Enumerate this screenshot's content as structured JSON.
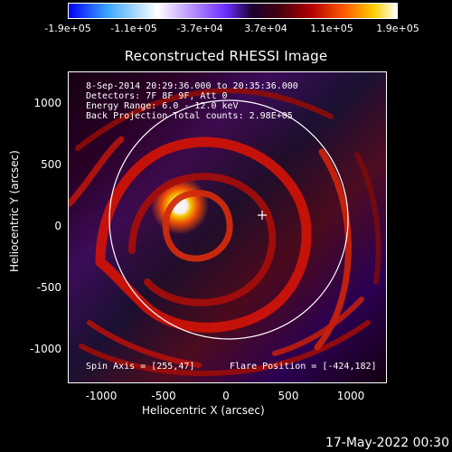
{
  "colorbar": {
    "ticks": [
      "-1.9e+05",
      "-1.1e+05",
      "-3.7e+04",
      "3.7e+04",
      "1.1e+05",
      "1.9e+05"
    ]
  },
  "title": "Reconstructed RHESSI Image",
  "overlay": {
    "time_range": "8-Sep-2014 20:29:36.000 to 20:35:36.000",
    "detectors": "Detectors: 7F 8F 9F, Att 0",
    "energy_range": "Energy Range: 6.0 - 12.0 keV",
    "method_counts": "Back Projection    Total counts: 2.98E+05",
    "spin_axis": "Spin Axis = [255,47]",
    "flare_position": "Flare Position = [-424,182]"
  },
  "axes": {
    "xlabel": "Heliocentric X (arcsec)",
    "ylabel": "Heliocentric Y (arcsec)",
    "x_ticks": [
      "-1000",
      "-500",
      "0",
      "500",
      "1000"
    ],
    "y_ticks": [
      "1000",
      "500",
      "0",
      "-500",
      "-1000"
    ]
  },
  "footer_timestamp": "17-May-2022 00:30"
}
